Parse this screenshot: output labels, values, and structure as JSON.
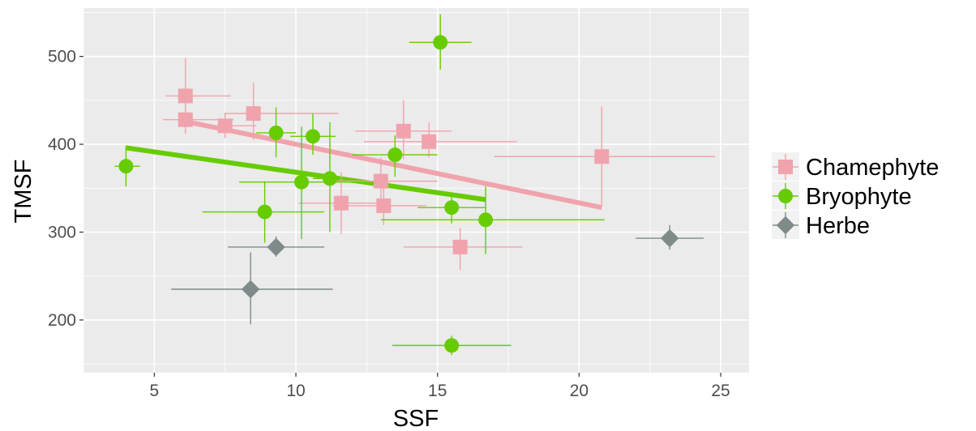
{
  "chart_data": {
    "type": "scatter",
    "xlabel": "SSF",
    "ylabel": "TMSF",
    "xlim": [
      2.5,
      26
    ],
    "ylim": [
      140,
      555
    ],
    "x_ticks": [
      5,
      10,
      15,
      20,
      25
    ],
    "y_ticks": [
      200,
      300,
      400,
      500
    ],
    "x_tick_labels": [
      "5",
      "10",
      "15",
      "20",
      "25"
    ],
    "y_tick_labels": [
      "200",
      "300",
      "400",
      "500"
    ],
    "grid": true,
    "legend_position": "right",
    "series": [
      {
        "name": "Chamephyte",
        "color": "#f0a3ac",
        "marker": "square",
        "points": [
          {
            "x": 6.1,
            "y": 455,
            "xerr": [
              5.4,
              7.7
            ],
            "yerr": [
              412,
              498
            ]
          },
          {
            "x": 6.1,
            "y": 428,
            "xerr": [
              5.3,
              7.8
            ],
            "yerr": [
              412,
              445
            ]
          },
          {
            "x": 7.5,
            "y": 421,
            "xerr": [
              6.6,
              8.6
            ],
            "yerr": [
              407,
              436
            ]
          },
          {
            "x": 8.5,
            "y": 435,
            "xerr": [
              7.5,
              11.5
            ],
            "yerr": [
              405,
              470
            ]
          },
          {
            "x": 11.6,
            "y": 333,
            "xerr": [
              10.1,
              13.2
            ],
            "yerr": [
              298,
              368
            ]
          },
          {
            "x": 13.0,
            "y": 358,
            "xerr": [
              11.1,
              15.0
            ],
            "yerr": [
              330,
              385
            ]
          },
          {
            "x": 13.1,
            "y": 330,
            "xerr": [
              11.3,
              14.6
            ],
            "yerr": [
              308,
              350
            ]
          },
          {
            "x": 13.8,
            "y": 415,
            "xerr": [
              12.1,
              15.5
            ],
            "yerr": [
              383,
              450
            ]
          },
          {
            "x": 14.7,
            "y": 403,
            "xerr": [
              12.4,
              17.8
            ],
            "yerr": [
              385,
              425
            ]
          },
          {
            "x": 15.8,
            "y": 283,
            "xerr": [
              13.8,
              18.0
            ],
            "yerr": [
              257,
              305
            ]
          },
          {
            "x": 20.8,
            "y": 386,
            "xerr": [
              17.0,
              24.8
            ],
            "yerr": [
              330,
              443
            ]
          }
        ],
        "fit": {
          "x": [
            6.1,
            20.8
          ],
          "y": [
            426,
            328
          ]
        }
      },
      {
        "name": "Bryophyte",
        "color": "#66cc00",
        "marker": "circle",
        "points": [
          {
            "x": 4.0,
            "y": 375,
            "xerr": [
              3.6,
              4.5
            ],
            "yerr": [
              352,
              398
            ]
          },
          {
            "x": 8.9,
            "y": 323,
            "xerr": [
              6.7,
              11.0
            ],
            "yerr": [
              288,
              358
            ]
          },
          {
            "x": 9.3,
            "y": 413,
            "xerr": [
              8.6,
              10.0
            ],
            "yerr": [
              385,
              442
            ]
          },
          {
            "x": 10.2,
            "y": 357,
            "xerr": [
              8.0,
              12.5
            ],
            "yerr": [
              292,
              420
            ]
          },
          {
            "x": 10.6,
            "y": 409,
            "xerr": [
              9.8,
              11.4
            ],
            "yerr": [
              388,
              435
            ]
          },
          {
            "x": 11.2,
            "y": 361,
            "xerr": [
              10.6,
              11.8
            ],
            "yerr": [
              300,
              425
            ]
          },
          {
            "x": 13.5,
            "y": 388,
            "xerr": [
              12.0,
              15.0
            ],
            "yerr": [
              363,
              410
            ]
          },
          {
            "x": 15.1,
            "y": 516,
            "xerr": [
              14.0,
              16.2
            ],
            "yerr": [
              485,
              548
            ]
          },
          {
            "x": 15.5,
            "y": 171,
            "xerr": [
              13.4,
              17.6
            ],
            "yerr": [
              160,
              182
            ]
          },
          {
            "x": 15.5,
            "y": 328,
            "xerr": [
              14.3,
              16.7
            ],
            "yerr": [
              310,
              345
            ]
          },
          {
            "x": 16.7,
            "y": 314,
            "xerr": [
              13.0,
              20.9
            ],
            "yerr": [
              275,
              352
            ]
          }
        ],
        "fit": {
          "x": [
            4.0,
            16.7
          ],
          "y": [
            396,
            337
          ]
        }
      },
      {
        "name": "Herbe",
        "color": "#7f8a8a",
        "marker": "diamond",
        "points": [
          {
            "x": 8.4,
            "y": 235,
            "xerr": [
              5.6,
              11.3
            ],
            "yerr": [
              195,
              277
            ]
          },
          {
            "x": 9.3,
            "y": 283,
            "xerr": [
              7.6,
              11.0
            ],
            "yerr": [
              272,
              295
            ]
          },
          {
            "x": 23.2,
            "y": 293,
            "xerr": [
              22.0,
              24.4
            ],
            "yerr": [
              280,
              308
            ]
          }
        ]
      }
    ]
  }
}
